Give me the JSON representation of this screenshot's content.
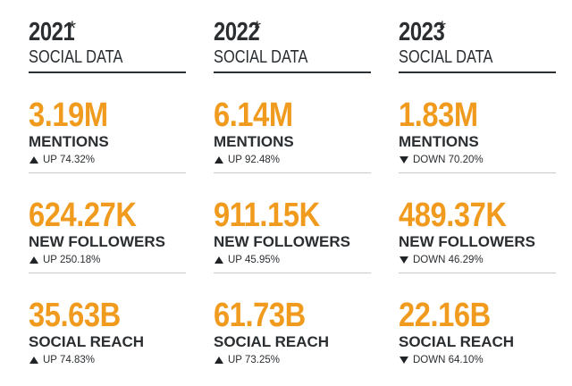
{
  "columns": [
    {
      "year": "2021",
      "asterisk": "*",
      "subtitle": "SOCIAL DATA",
      "stats": [
        {
          "value": "3.19M",
          "label": "MENTIONS",
          "direction": "up",
          "change": "UP 74.32%"
        },
        {
          "value": "624.27K",
          "label": "NEW FOLLOWERS",
          "direction": "up",
          "change": "UP 250.18%"
        },
        {
          "value": "35.63B",
          "label": "SOCIAL REACH",
          "direction": "up",
          "change": "UP 74.83%"
        }
      ]
    },
    {
      "year": "2022",
      "asterisk": "*",
      "subtitle": "SOCIAL DATA",
      "stats": [
        {
          "value": "6.14M",
          "label": "MENTIONS",
          "direction": "up",
          "change": "UP 92.48%"
        },
        {
          "value": "911.15K",
          "label": "NEW FOLLOWERS",
          "direction": "up",
          "change": "UP 45.95%"
        },
        {
          "value": "61.73B",
          "label": "SOCIAL REACH",
          "direction": "up",
          "change": "UP 73.25%"
        }
      ]
    },
    {
      "year": "2023",
      "asterisk": "*",
      "subtitle": "SOCIAL DATA",
      "stats": [
        {
          "value": "1.83M",
          "label": "MENTIONS",
          "direction": "down",
          "change": "DOWN 70.20%"
        },
        {
          "value": "489.37K",
          "label": "NEW FOLLOWERS",
          "direction": "down",
          "change": "DOWN 46.29%"
        },
        {
          "value": "22.16B",
          "label": "SOCIAL REACH",
          "direction": "down",
          "change": "DOWN 64.10%"
        }
      ]
    }
  ],
  "colors": {
    "accent": "#f09a1e",
    "text": "#2a2e31",
    "divider": "#c9c9c9"
  },
  "icons": {
    "up": "up-triangle-icon",
    "down": "down-triangle-icon"
  }
}
